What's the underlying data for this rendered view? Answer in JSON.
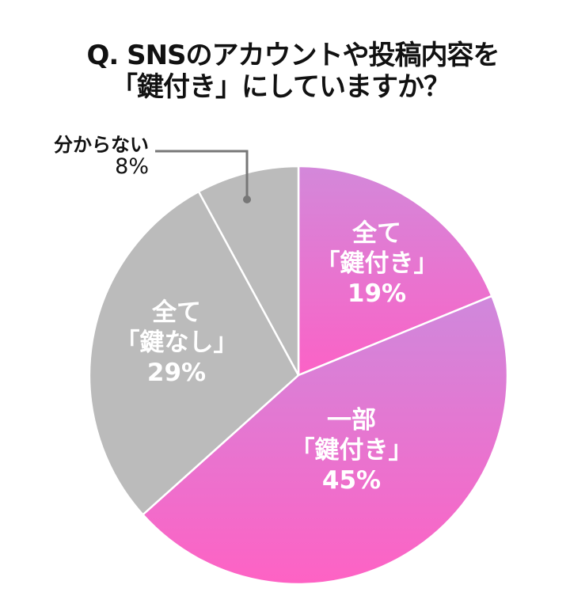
{
  "title": {
    "line1": "Q. SNSのアカウントや投稿内容を",
    "line2": "「鍵付き」にしていますか？"
  },
  "chart_data": {
    "type": "pie",
    "title": "Q. SNSのアカウントや投稿内容を「鍵付き」にしていますか？",
    "start_angle_deg": 0,
    "direction": "clockwise",
    "categories": [
      "全て「鍵付き」",
      "一部「鍵付き」",
      "全て「鍵なし」",
      "分からない"
    ],
    "values": [
      19,
      45,
      29,
      8
    ],
    "unit": "%",
    "colors": [
      "#f562c6",
      "#f562c6",
      "#bbbbbb",
      "#bbbbbb"
    ],
    "gradient_top_colors": [
      "#d386d9",
      "#d386d9",
      "#bbbbbb",
      "#bbbbbb"
    ],
    "legend": "none (labels placed on slices)"
  },
  "labels": {
    "s1": {
      "line1": "全て",
      "line2": "「鍵付き」",
      "value": "19%"
    },
    "s2": {
      "line1": "一部",
      "line2": "「鍵付き」",
      "value": "45%"
    },
    "s3": {
      "line1": "全て",
      "line2": "「鍵なし」",
      "value": "29%"
    },
    "s4": {
      "line1": "分からない",
      "value": "8%"
    }
  }
}
